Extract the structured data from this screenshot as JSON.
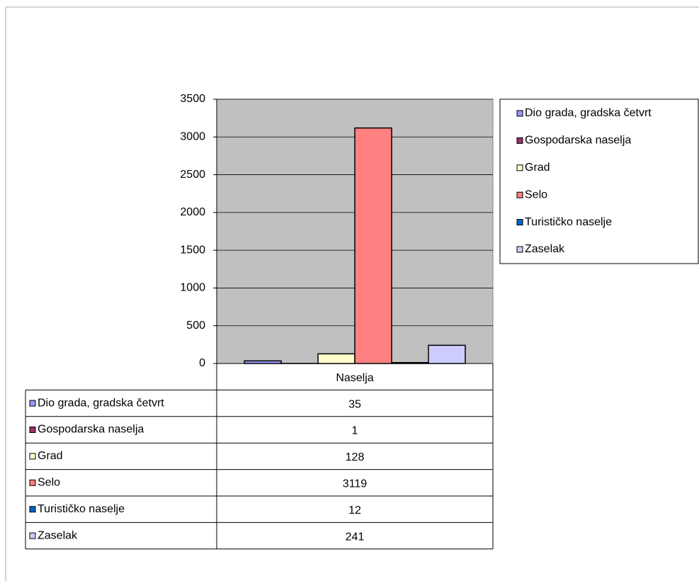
{
  "chart_data": {
    "type": "bar",
    "categories": [
      "Naselja"
    ],
    "series": [
      {
        "name": "Dio grada, gradska četvrt",
        "color": "#9999ff",
        "values": [
          35
        ]
      },
      {
        "name": "Gospodarska naselja",
        "color": "#993366",
        "values": [
          1
        ]
      },
      {
        "name": "Grad",
        "color": "#ffffcc",
        "values": [
          128
        ]
      },
      {
        "name": "Selo",
        "color": "#ff8080",
        "values": [
          3119
        ]
      },
      {
        "name": "Turističko naselje",
        "color": "#0066cc",
        "values": [
          12
        ]
      },
      {
        "name": "Zaselak",
        "color": "#ccccff",
        "values": [
          241
        ]
      }
    ],
    "ylim": [
      0,
      3500
    ],
    "yticks": [
      0,
      500,
      1000,
      1500,
      2000,
      2500,
      3000,
      3500
    ],
    "grid": true,
    "legend": "right",
    "plot_background": "#c0c0c0",
    "data_table": true
  }
}
